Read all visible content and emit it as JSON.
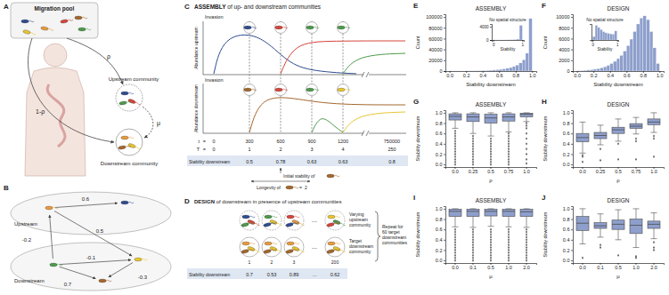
{
  "panels": {
    "A": {
      "label": "A",
      "migration_pool": "Migration pool",
      "rho": "ρ",
      "one_minus_rho": "1-ρ",
      "upstream": "Upstream community",
      "downstream": "Downstream community",
      "mu": "μ"
    },
    "B": {
      "label": "B",
      "upstream": "Upstream",
      "downstream": "Downstream",
      "weights": [
        0.6,
        0.5,
        -0.2,
        -0.1,
        -0.3,
        0.7
      ]
    },
    "C": {
      "label": "C",
      "title_bold": "ASSEMBLY",
      "title_rest": " of up- and downstream communities",
      "invasion": "Invasion",
      "abundance_upstream": "Abundance upstream",
      "abundance_downstream": "Abundance downstream",
      "equals": "=",
      "t_name": "t",
      "t": [
        0,
        300,
        600,
        900,
        1200,
        750000
      ],
      "T_name": "T",
      "T": [
        0,
        1,
        2,
        3,
        4,
        250
      ],
      "stability_label": "Stability downstream",
      "stability": [
        0.5,
        0.78,
        0.63,
        0.63,
        0.8
      ],
      "initial_stability": "Initial stability of",
      "longevity": "Longevity of",
      "longevity_value": 2
    },
    "D": {
      "label": "D",
      "title_bold": "DESIGN",
      "title_rest": " of downstream in presence of upstream communities",
      "varying": [
        "Varying",
        "upstream",
        "community"
      ],
      "target": [
        "Target",
        "downstream",
        "community"
      ],
      "indices": [
        1,
        2,
        3,
        200
      ],
      "ellipsis": "...",
      "repeat": [
        "Repeat for",
        "60 target",
        "downstream",
        "communities"
      ],
      "stability_label": "Stability downstream",
      "stability": [
        0.7,
        0.53,
        0.89,
        0.62
      ]
    }
  },
  "chart_data": [
    {
      "type": "histogram",
      "panel": "E",
      "title": "ASSEMBLY",
      "x_label": "Stability downstream",
      "y_label": "Count",
      "bins": [
        0,
        0.04,
        0.08,
        0.12,
        0.16,
        0.2,
        0.24,
        0.28,
        0.32,
        0.36,
        0.4,
        0.44,
        0.48,
        0.52,
        0.56,
        0.6,
        0.64,
        0.68,
        0.72,
        0.76,
        0.8,
        0.84,
        0.88,
        0.92,
        0.96,
        1
      ],
      "counts": [
        600,
        300,
        300,
        350,
        400,
        450,
        550,
        650,
        800,
        950,
        1150,
        1400,
        1700,
        2100,
        2600,
        3200,
        4000,
        5100,
        6500,
        8400,
        11000,
        15000,
        21000,
        33000,
        97000
      ],
      "color": "#8e9fcc",
      "xlim": [
        -0.05,
        1.05
      ],
      "ylim": [
        0,
        105000
      ],
      "xticks": [
        {
          "value": 0,
          "label": "0.0"
        },
        0.2,
        0.4,
        0.6,
        0.8,
        {
          "value": 1,
          "label": "1.0"
        }
      ],
      "yticks": [
        0,
        20000,
        40000,
        60000,
        80000,
        100000
      ],
      "inset": {
        "type": "histogram",
        "title": "No spatial structure",
        "x_label": "Stability",
        "bins": [
          0,
          0.1,
          0.2,
          0.3,
          0.4,
          0.5,
          0.6,
          0.7,
          0.8,
          0.9,
          1
        ],
        "counts": [
          40,
          30,
          30,
          40,
          50,
          60,
          80,
          130,
          250,
          4400
        ],
        "color": "#8e9fcc",
        "xlim": [
          -0.05,
          1.05
        ],
        "ylim": [
          0,
          4800
        ],
        "xticks": [
          0,
          1
        ],
        "yticks": [
          0,
          4000
        ]
      }
    },
    {
      "type": "histogram",
      "panel": "F",
      "title": "DESIGN",
      "x_label": "Stability downstream",
      "y_label": "Count",
      "bins": [
        0,
        0.04,
        0.08,
        0.12,
        0.16,
        0.2,
        0.24,
        0.28,
        0.32,
        0.36,
        0.4,
        0.44,
        0.48,
        0.52,
        0.56,
        0.6,
        0.64,
        0.68,
        0.72,
        0.76,
        0.8,
        0.84,
        0.88,
        0.92,
        0.96,
        1
      ],
      "counts": [
        80,
        100,
        150,
        200,
        250,
        350,
        450,
        600,
        800,
        1050,
        1400,
        1800,
        2300,
        2900,
        3700,
        4700,
        5900,
        7300,
        8700,
        9800,
        10200,
        9500,
        7300,
        4300,
        1400
      ],
      "color": "#8e9fcc",
      "xlim": [
        -0.05,
        1.05
      ],
      "ylim": [
        0,
        10500
      ],
      "xticks": [
        {
          "value": 0,
          "label": "0.0"
        },
        0.2,
        0.4,
        0.6,
        0.8,
        {
          "value": 1,
          "label": "1.0"
        }
      ],
      "yticks": [
        0,
        2000,
        4000,
        6000,
        8000,
        10000
      ],
      "inset": {
        "type": "histogram",
        "title": "No spatial structure",
        "x_label": "Stability",
        "bins": [
          0,
          0.1,
          0.2,
          0.3,
          0.4,
          0.5,
          0.6,
          0.7,
          0.8,
          0.9,
          1
        ],
        "counts": [
          250,
          1050,
          900,
          750,
          600,
          520,
          480,
          440,
          420,
          650
        ],
        "color": "#8e9fcc",
        "xlim": [
          -0.05,
          1.05
        ],
        "ylim": [
          0,
          1150
        ],
        "xticks": [
          0,
          1
        ],
        "tick_labels": "x"
      }
    },
    {
      "type": "box",
      "panel": "G",
      "title": "ASSEMBLY",
      "x_label": "ρ",
      "y_label": "Stability downstream",
      "categories": [
        "0.0",
        "0.25",
        "0.5",
        "0.75",
        "1.0"
      ],
      "q1": [
        0.86,
        0.83,
        0.8,
        0.84,
        0.92
      ],
      "median": [
        0.93,
        0.92,
        0.9,
        0.92,
        0.97
      ],
      "q3": [
        0.98,
        0.98,
        0.97,
        0.98,
        0.99
      ],
      "whisker_low": [
        0.7,
        0.6,
        0.55,
        0.63,
        0.83
      ],
      "whisker_high": [
        1,
        1,
        1,
        1,
        1
      ],
      "outliers": [
        [
          0.0,
          0.05,
          0.1,
          0.15,
          0.2,
          0.25,
          0.3,
          0.35,
          0.4,
          0.45,
          0.5,
          0.55,
          0.6,
          0.65
        ],
        [
          0.0,
          0.05,
          0.1,
          0.15,
          0.2,
          0.25,
          0.3,
          0.35,
          0.4,
          0.45,
          0.5,
          0.55
        ],
        [
          0.0,
          0.05,
          0.1,
          0.15,
          0.2,
          0.25,
          0.3,
          0.35,
          0.4,
          0.45,
          0.5
        ],
        [
          0.0,
          0.05,
          0.1,
          0.15,
          0.2,
          0.25,
          0.3,
          0.35,
          0.4,
          0.45,
          0.5,
          0.55,
          0.6
        ],
        [
          0.02,
          0.1,
          0.2,
          0.3,
          0.4,
          0.5,
          0.6,
          0.7,
          0.75,
          0.8
        ]
      ],
      "color": "#8e9fcc",
      "ylim": [
        -0.05,
        1.05
      ],
      "yticks": [
        {
          "value": 0,
          "label": "0.0"
        },
        0.2,
        0.4,
        0.6,
        0.8,
        {
          "value": 1,
          "label": "1.0"
        }
      ]
    },
    {
      "type": "box",
      "panel": "H",
      "title": "DESIGN",
      "x_label": "ρ",
      "y_label": "Stability downstream",
      "categories": [
        "0.0",
        "0.25",
        "0.5",
        "0.75",
        "1.0"
      ],
      "q1": [
        0.44,
        0.5,
        0.6,
        0.7,
        0.77
      ],
      "median": [
        0.52,
        0.56,
        0.67,
        0.74,
        0.82
      ],
      "q3": [
        0.6,
        0.62,
        0.72,
        0.79,
        0.88
      ],
      "whisker_low": [
        0.22,
        0.38,
        0.45,
        0.59,
        0.62
      ],
      "whisker_high": [
        0.82,
        0.76,
        0.88,
        0.91,
        1
      ],
      "outliers": [
        [
          0.05,
          0.15,
          0.18
        ],
        [
          0.08,
          0.3
        ],
        [
          0.1,
          0.4
        ],
        [
          0.1,
          0.45,
          0.5
        ],
        [
          0.15,
          0.5,
          0.55
        ]
      ],
      "color": "#8e9fcc",
      "ylim": [
        -0.05,
        1.05
      ],
      "yticks": [
        {
          "value": 0,
          "label": "0.0"
        },
        0.2,
        0.4,
        0.6,
        0.8,
        {
          "value": 1,
          "label": "1.0"
        }
      ]
    },
    {
      "type": "box",
      "panel": "I",
      "title": "ASSEMBLY",
      "x_label": "μ",
      "y_label": "Stability downstream",
      "categories": [
        "0.0",
        "0.1",
        "0.5",
        "1.0",
        "2.0"
      ],
      "q1": [
        0.85,
        0.85,
        0.86,
        0.85,
        0.85
      ],
      "median": [
        0.95,
        0.95,
        0.95,
        0.95,
        0.94
      ],
      "q3": [
        0.99,
        0.99,
        0.99,
        0.99,
        0.99
      ],
      "whisker_low": [
        0.65,
        0.64,
        0.66,
        0.65,
        0.64
      ],
      "whisker_high": [
        1,
        1,
        1,
        1,
        1
      ],
      "outliers": [
        [
          0.0,
          0.05,
          0.1,
          0.15,
          0.2,
          0.25,
          0.3,
          0.35,
          0.4,
          0.45,
          0.5,
          0.55,
          0.6
        ],
        [
          0.0,
          0.05,
          0.1,
          0.15,
          0.2,
          0.25,
          0.3,
          0.35,
          0.4,
          0.45,
          0.5,
          0.55,
          0.6
        ],
        [
          0.0,
          0.05,
          0.1,
          0.15,
          0.2,
          0.25,
          0.3,
          0.35,
          0.4,
          0.45,
          0.5,
          0.55,
          0.6
        ],
        [
          0.0,
          0.05,
          0.1,
          0.15,
          0.2,
          0.25,
          0.3,
          0.35,
          0.4,
          0.45,
          0.5,
          0.55,
          0.6
        ],
        [
          0.0,
          0.05,
          0.1,
          0.15,
          0.2,
          0.25,
          0.3,
          0.35,
          0.4,
          0.45,
          0.5,
          0.55,
          0.6
        ]
      ],
      "color": "#8e9fcc",
      "ylim": [
        -0.05,
        1.05
      ],
      "yticks": [
        {
          "value": 0,
          "label": "0.0"
        },
        0.2,
        0.4,
        0.6,
        0.8,
        {
          "value": 1,
          "label": "1.0"
        }
      ]
    },
    {
      "type": "box",
      "panel": "J",
      "title": "DESIGN",
      "x_label": "μ",
      "y_label": "Stability downstream",
      "categories": [
        "0.0",
        "0.1",
        "0.5",
        "1.0",
        "2.0"
      ],
      "q1": [
        0.58,
        0.62,
        0.6,
        0.52,
        0.62
      ],
      "median": [
        0.72,
        0.67,
        0.7,
        0.68,
        0.7
      ],
      "q3": [
        0.85,
        0.73,
        0.78,
        0.8,
        0.76
      ],
      "whisker_low": [
        0.32,
        0.45,
        0.4,
        0.25,
        0.42
      ],
      "whisker_high": [
        1,
        0.9,
        0.98,
        1,
        0.92
      ],
      "outliers": [
        [
          0.05
        ],
        [
          0.25,
          0.3
        ],
        [
          0.1
        ],
        [
          0.05,
          0.08
        ],
        [
          0.2,
          0.25,
          0.35
        ]
      ],
      "color": "#8e9fcc",
      "ylim": [
        -0.05,
        1.05
      ],
      "yticks": [
        {
          "value": 0,
          "label": "0.0"
        },
        0.2,
        0.4,
        0.6,
        0.8,
        {
          "value": 1,
          "label": "1.0"
        }
      ]
    }
  ]
}
